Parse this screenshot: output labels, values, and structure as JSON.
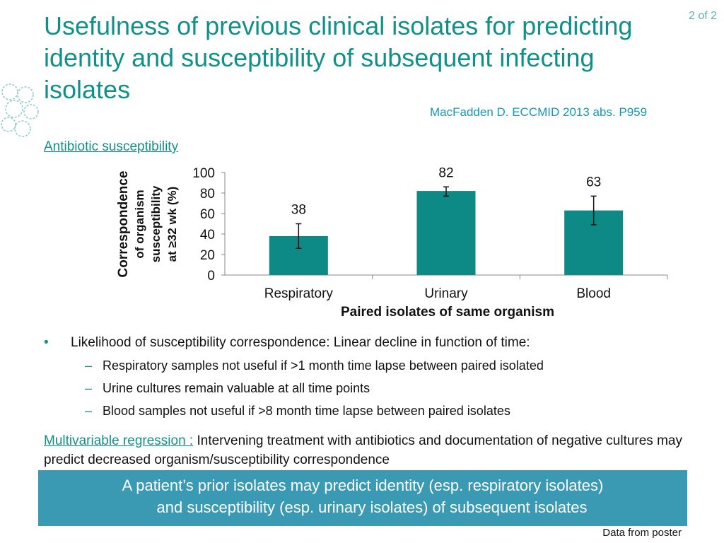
{
  "slide": {
    "title": "Usefulness of previous clinical isolates for predicting identity and susceptibility of subsequent infecting isolates",
    "page_indicator": "2 of 2",
    "citation": "MacFadden D. ECCMID 2013 abs. P959",
    "section_heading": "Antibiotic susceptibility",
    "logo_icon": "virus-pattern-logo",
    "bullets": [
      {
        "text": "Likelihood of susceptibility correspondence: Linear decline in function of time:",
        "sub": [
          "Respiratory samples not useful if >1 month time lapse between paired isolated",
          "Urine cultures remain valuable at all time points",
          "Blood samples not useful if >8 month time lapse between paired isolates"
        ]
      }
    ],
    "regression_label": "Multivariable regression :",
    "regression_text": " Intervening treatment with antibiotics and documentation of negative cultures may predict decreased organism/susceptibility correspondence",
    "conclusion_line1": "A patient’s prior isolates may predict identity (esp. respiratory isolates)",
    "conclusion_line2": "and susceptibility (esp. urinary isolates) of subsequent isolates",
    "footnote": "Data from poster",
    "colors": {
      "teal": "#0e8a86",
      "title": "#11908a",
      "box": "#3a9ab3"
    }
  },
  "chart_data": {
    "type": "bar",
    "title": "",
    "xlabel": "Paired isolates of same organism",
    "ylabel": "Correspondence of organism susceptibility at ≥32 wk (%)",
    "ylabel_lines": [
      "Correspondence",
      "of organism",
      "susceptibility",
      "at ≥32 wk (%)"
    ],
    "categories": [
      "Respiratory",
      "Urinary",
      "Blood"
    ],
    "values": [
      38,
      82,
      63
    ],
    "data_labels": [
      "38",
      "82",
      "63"
    ],
    "error_bars": [
      [
        26,
        50
      ],
      [
        77,
        86
      ],
      [
        49,
        77
      ]
    ],
    "ylim": [
      0,
      100
    ],
    "yticks": [
      "0",
      "20",
      "40",
      "60",
      "80",
      "100"
    ],
    "grid": false,
    "legend": "none",
    "bar_color": "#0e8a86"
  }
}
